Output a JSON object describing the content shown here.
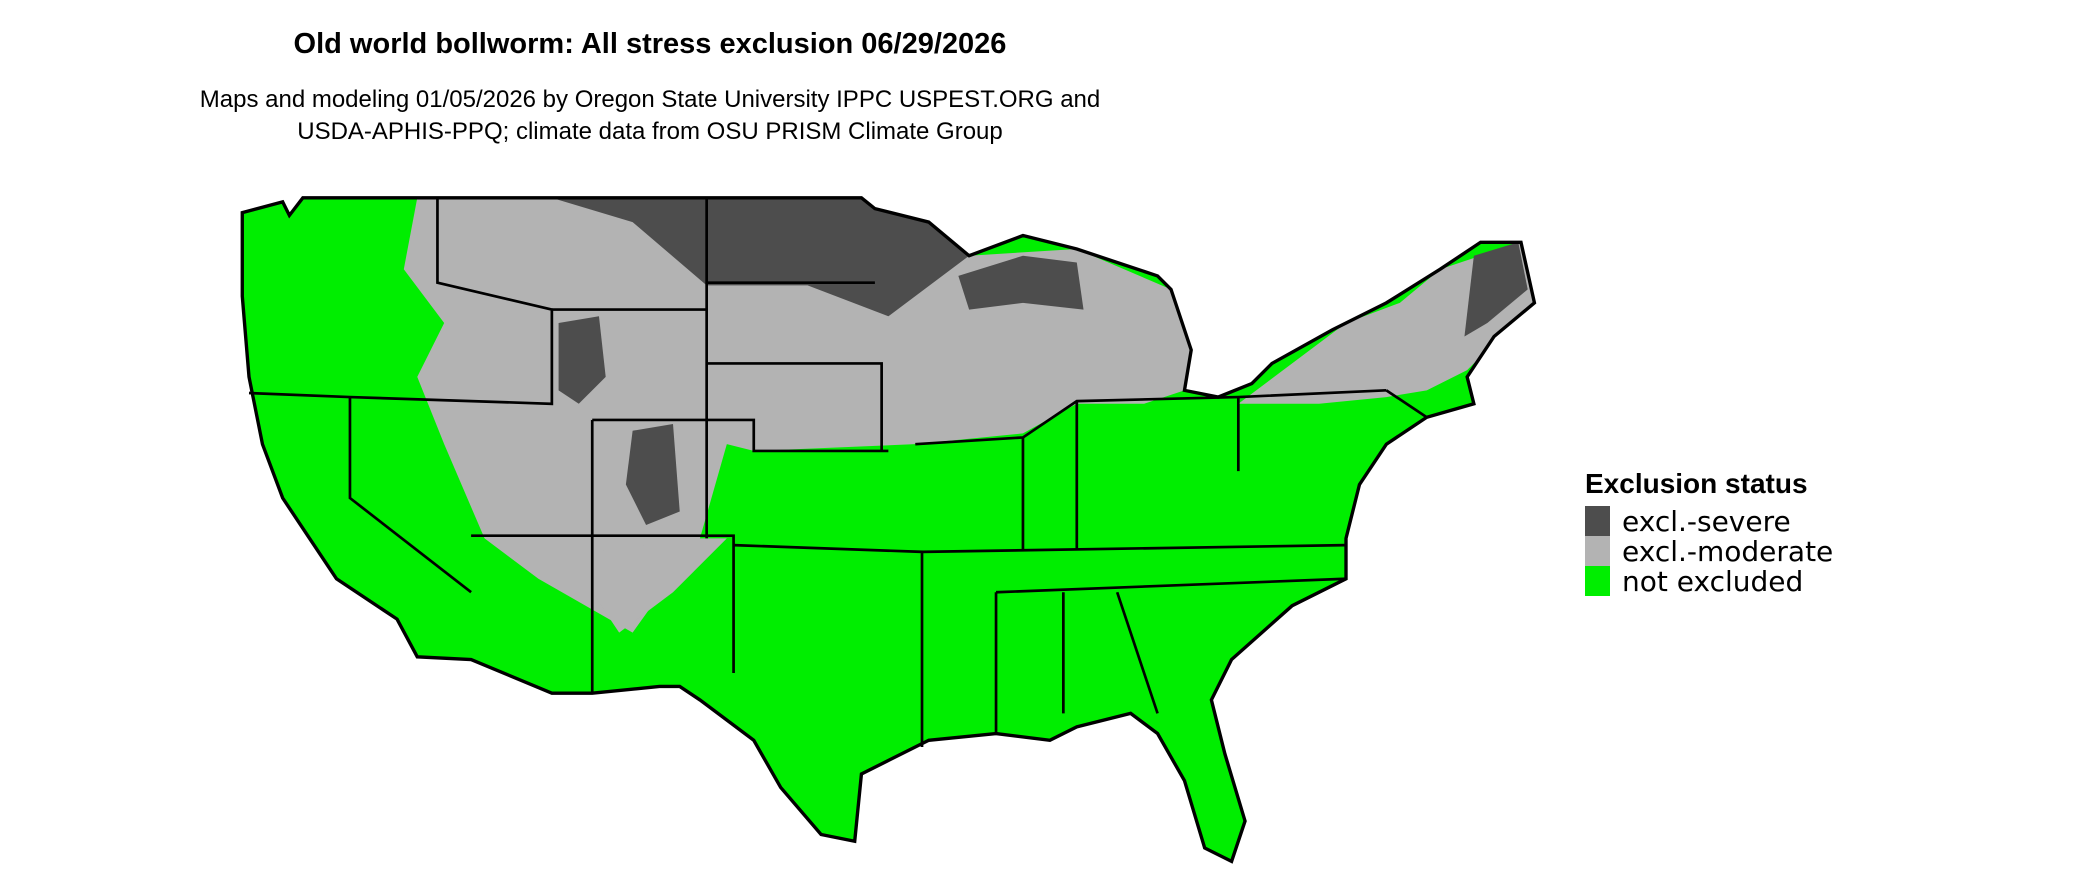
{
  "title": "Old world bollworm: All stress exclusion 06/29/2026",
  "subtitle_line1": "Maps and modeling 01/05/2026 by Oregon State University IPPC USPEST.ORG and",
  "subtitle_line2": "USDA-APHIS-PPQ; climate data from OSU PRISM Climate Group",
  "legend": {
    "title": "Exclusion status",
    "items": [
      {
        "label": "excl.-severe",
        "color": "#4d4d4d"
      },
      {
        "label": "excl.-moderate",
        "color": "#b3b3b3"
      },
      {
        "label": "not excluded",
        "color": "#00ee00"
      }
    ]
  }
}
